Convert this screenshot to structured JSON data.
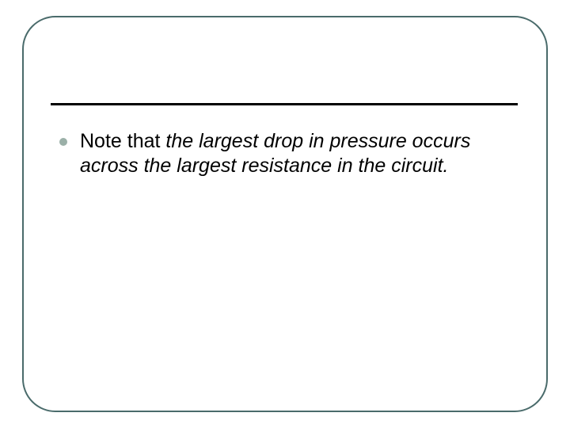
{
  "slide": {
    "frame_border_color": "#4a6b6b",
    "frame_border_width": 2.5,
    "frame_border_radius": 42,
    "underline_color": "#000000",
    "underline_width": 590,
    "bullet_color": "#9bb0a8",
    "bullet_size": 10,
    "text_color": "#000000",
    "font_size": 25,
    "background_color": "#ffffff",
    "content": {
      "lead": "Note that ",
      "italic": "the largest drop in pressure occurs across the largest resistance in the circuit."
    }
  }
}
